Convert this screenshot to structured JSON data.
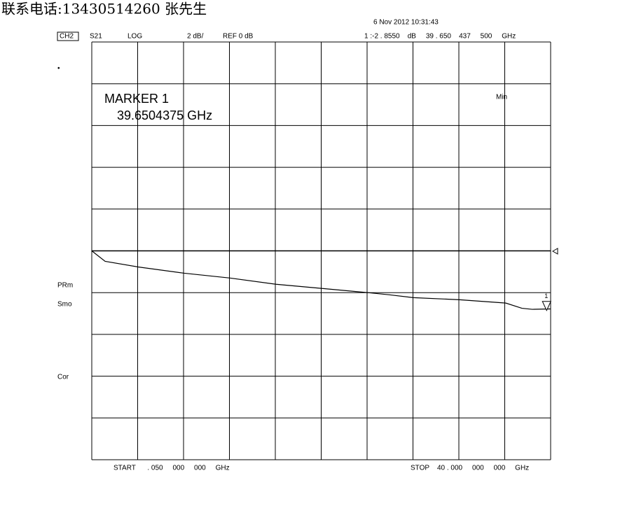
{
  "header": {
    "contact": "联系电话:13430514260 张先生",
    "timestamp": "6 Nov 2012  10:31:43"
  },
  "status": {
    "channel": "CH2",
    "parameter": "S21",
    "format": "LOG",
    "scale": "2 dB/",
    "reference": "REF 0 dB",
    "readout": "1 :-2 . 8550    dB     39 . 650    437     500     GHz"
  },
  "side_labels": [
    "PRm",
    "Smo",
    "Cor"
  ],
  "footer": {
    "start": "START      . 050     000     000     GHz",
    "stop": "STOP    40 . 000     000     000     GHz"
  },
  "chart_data": {
    "type": "line",
    "grid": true,
    "color": "#000000",
    "xlim": [
      0.05,
      40
    ],
    "ylim": [
      -10,
      10
    ],
    "reference_level": 0,
    "annotation_title": "MARKER 1",
    "annotation_value": "39.6504375 GHz",
    "annotation_mode": "Min",
    "marker_label": "1",
    "marker": {
      "x": 39.6504375,
      "y": -2.855
    },
    "series": [
      {
        "name": "S21",
        "x": [
          0.05,
          1.21,
          4.08,
          8.1,
          12.07,
          16.09,
          20.12,
          24.08,
          25.9,
          28.05,
          32.07,
          36.1,
          37.5,
          38.4,
          40
        ],
        "values": [
          0,
          -0.5,
          -0.77,
          -1.07,
          -1.3,
          -1.6,
          -1.8,
          -2.0,
          -2.1,
          -2.24,
          -2.34,
          -2.5,
          -2.75,
          -2.8,
          -2.78
        ]
      }
    ]
  }
}
